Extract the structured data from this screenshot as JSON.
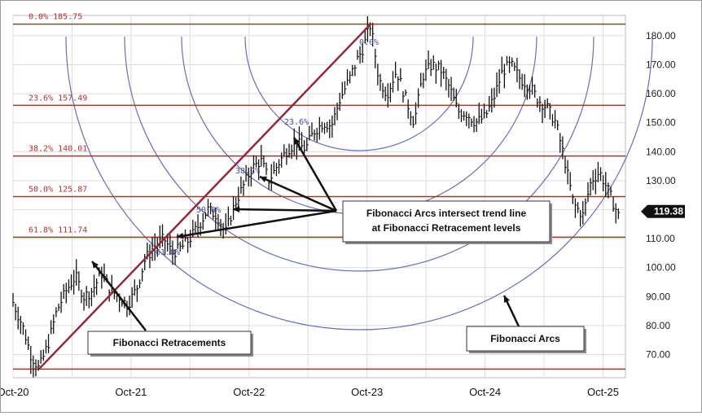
{
  "chart_data": {
    "type": "ohlc",
    "ylim": [
      62,
      187
    ],
    "x_range": [
      "2020-10",
      "2025-11"
    ],
    "x_ticks": [
      "Oct-20",
      "Oct-21",
      "Oct-22",
      "Oct-23",
      "Oct-24",
      "Oct-25"
    ],
    "y_ticks": [
      70,
      80,
      90,
      100,
      110,
      120,
      130,
      140,
      150,
      160,
      170,
      180
    ],
    "y_tick_labels": [
      "70.00",
      "80.00",
      "90.00",
      "100.00",
      "110.00",
      "120.00",
      "130.00",
      "140.00",
      "150.00",
      "160.00",
      "170.00",
      "180.00"
    ],
    "grid": true,
    "current_price": 119.38,
    "current_price_label": "119.38",
    "fib_retracement_levels": [
      {
        "label": "0.0% 185.75",
        "value": 184.0
      },
      {
        "label": "23.6% 157.49",
        "value": 156.0
      },
      {
        "label": "38.2% 140.01",
        "value": 138.5
      },
      {
        "label": "50.0% 125.87",
        "value": 124.5
      },
      {
        "label": "61.8% 111.74",
        "value": 110.5
      }
    ],
    "trend_line": {
      "from": {
        "t": 2020.97,
        "v": 65
      },
      "to": {
        "t": 2023.78,
        "v": 184
      }
    },
    "low_line_value": 65,
    "arc_labels": [
      "0.0%",
      "23.6%",
      "38.2%",
      "50.0%",
      "61.8%"
    ],
    "annotations": [
      {
        "text": "Fibonacci Retracements"
      },
      {
        "text": "Fibonacci Arcs intersect trend line\nat Fibonacci Retracement levels"
      },
      {
        "text": "Fibonacci Arcs"
      }
    ],
    "price_series": {
      "t": [
        2020.75,
        2020.83,
        2020.9,
        2020.97,
        2021.05,
        2021.12,
        2021.2,
        2021.28,
        2021.35,
        2021.42,
        2021.5,
        2021.58,
        2021.65,
        2021.72,
        2021.8,
        2021.87,
        2021.95,
        2022.03,
        2022.1,
        2022.18,
        2022.25,
        2022.33,
        2022.4,
        2022.48,
        2022.55,
        2022.63,
        2022.7,
        2022.77,
        2022.85,
        2022.92,
        2023.0,
        2023.08,
        2023.15,
        2023.23,
        2023.3,
        2023.38,
        2023.45,
        2023.52,
        2023.6,
        2023.67,
        2023.72,
        2023.78,
        2023.85,
        2023.92,
        2024.0,
        2024.08,
        2024.15,
        2024.22,
        2024.3,
        2024.38,
        2024.45,
        2024.52,
        2024.6,
        2024.67,
        2024.75,
        2024.82,
        2024.9,
        2024.97,
        2025.05,
        2025.12,
        2025.2,
        2025.28,
        2025.35,
        2025.42,
        2025.5,
        2025.58,
        2025.65,
        2025.72,
        2025.8,
        2025.88
      ],
      "v": [
        88,
        80,
        70,
        65,
        74,
        85,
        92,
        97,
        90,
        92,
        98,
        92,
        90,
        87,
        93,
        103,
        107,
        110,
        105,
        107,
        110,
        115,
        120,
        118,
        112,
        122,
        128,
        134,
        137,
        130,
        136,
        141,
        143,
        141,
        147,
        150,
        149,
        158,
        165,
        172,
        176,
        184,
        165,
        160,
        168,
        158,
        150,
        166,
        170,
        168,
        162,
        154,
        153,
        150,
        152,
        158,
        168,
        170,
        165,
        163,
        158,
        155,
        150,
        138,
        122,
        118,
        130,
        133,
        126,
        118
      ]
    }
  }
}
